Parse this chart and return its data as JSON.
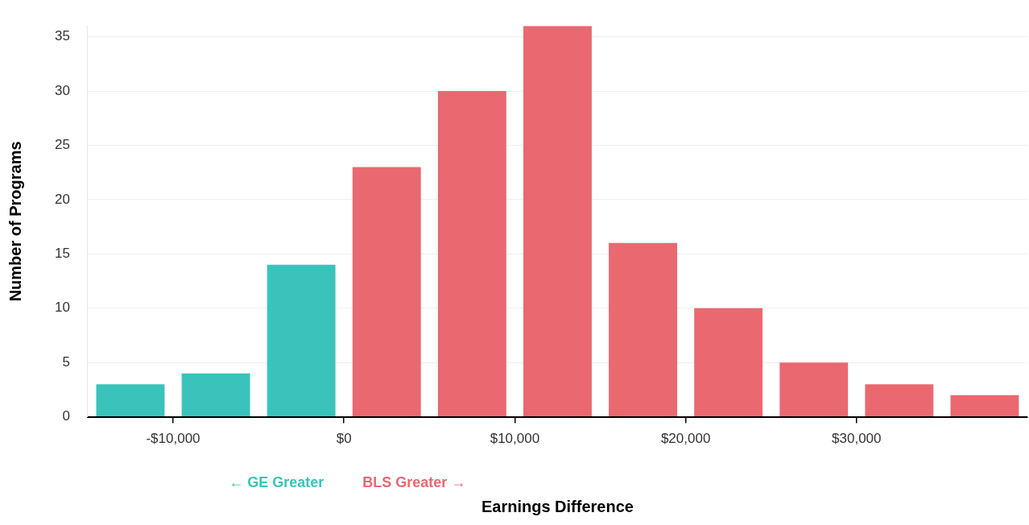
{
  "chart_data": {
    "type": "histogram",
    "xlabel": "Earnings Difference",
    "ylabel": "Number of Programs",
    "bins": [
      -15000,
      -10000,
      -5000,
      0,
      5000,
      10000,
      15000,
      20000,
      25000,
      30000,
      35000,
      40000
    ],
    "values": [
      3,
      4,
      14,
      23,
      30,
      36,
      16,
      10,
      5,
      3,
      2
    ],
    "colors": [
      "#3ac3bb",
      "#3ac3bb",
      "#3ac3bb",
      "#ea686f",
      "#ea686f",
      "#ea686f",
      "#ea686f",
      "#ea686f",
      "#ea686f",
      "#ea686f",
      "#ea686f"
    ],
    "xlim": [
      -15000,
      40000
    ],
    "xticks": [
      {
        "value": -10000,
        "label": "-$10,000"
      },
      {
        "value": 0,
        "label": "$0"
      },
      {
        "value": 10000,
        "label": "$10,000"
      },
      {
        "value": 20000,
        "label": "$20,000"
      },
      {
        "value": 30000,
        "label": "$30,000"
      }
    ],
    "ylim": [
      0,
      36
    ],
    "yticks": [
      0,
      5,
      10,
      15,
      20,
      25,
      30,
      35
    ],
    "annotations": [
      "← GE Greater",
      "BLS Greater →"
    ],
    "grid": "y",
    "legend": false
  }
}
